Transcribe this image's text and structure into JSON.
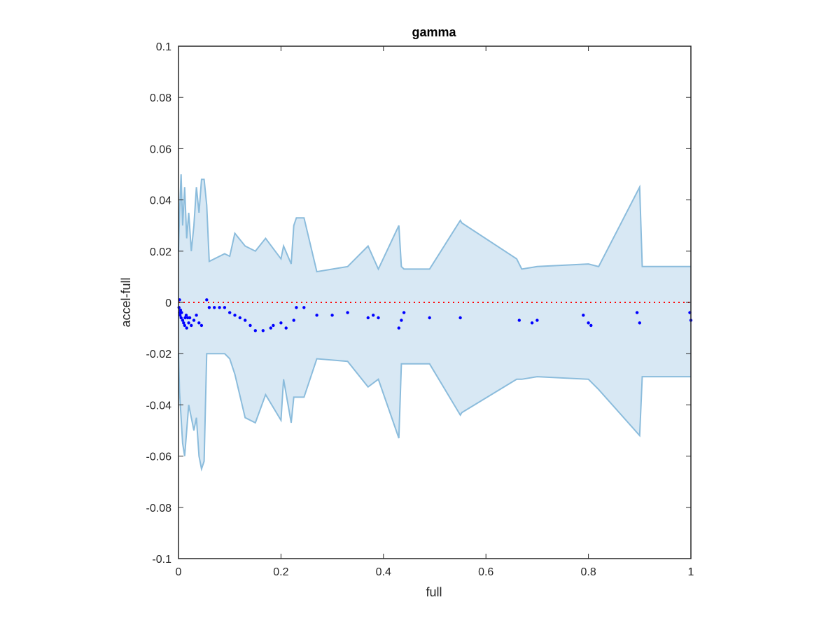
{
  "chart_data": {
    "type": "scatter",
    "title": "gamma",
    "xlabel": "full",
    "ylabel": "accel-full",
    "xlim": [
      0,
      1
    ],
    "ylim": [
      -0.1,
      0.1
    ],
    "x_ticks": [
      0,
      0.2,
      0.4,
      0.6,
      0.8,
      1
    ],
    "x_tick_labels": [
      "0",
      "0.2",
      "0.4",
      "0.6",
      "0.8",
      "1"
    ],
    "y_ticks": [
      0.1,
      0.08,
      0.06,
      0.04,
      0.02,
      0,
      -0.02,
      -0.04,
      -0.06,
      -0.08,
      -0.1
    ],
    "y_tick_labels": [
      "0.1",
      "0.08",
      "0.06",
      "0.04",
      "0.02",
      "0",
      "-0.02",
      "-0.04",
      "-0.06",
      "-0.08",
      "-0.1"
    ],
    "grid": false,
    "legend": "none",
    "band": {
      "x": [
        0,
        0.002,
        0.005,
        0.008,
        0.012,
        0.016,
        0.02,
        0.025,
        0.03,
        0.035,
        0.04,
        0.045,
        0.05,
        0.055,
        0.06,
        0.09,
        0.1,
        0.11,
        0.13,
        0.15,
        0.17,
        0.2,
        0.205,
        0.22,
        0.225,
        0.23,
        0.245,
        0.27,
        0.33,
        0.37,
        0.39,
        0.43,
        0.435,
        0.44,
        0.49,
        0.55,
        0.553,
        0.66,
        0.67,
        0.7,
        0.8,
        0.82,
        0.9,
        0.905,
        0.998,
        1
      ],
      "upper": [
        0.02,
        0.035,
        0.05,
        0.03,
        0.045,
        0.025,
        0.035,
        0.02,
        0.03,
        0.045,
        0.035,
        0.048,
        0.048,
        0.038,
        0.016,
        0.019,
        0.018,
        0.027,
        0.022,
        0.02,
        0.025,
        0.017,
        0.022,
        0.015,
        0.03,
        0.033,
        0.033,
        0.012,
        0.014,
        0.022,
        0.013,
        0.03,
        0.014,
        0.013,
        0.013,
        0.032,
        0.031,
        0.017,
        0.013,
        0.014,
        0.015,
        0.014,
        0.045,
        0.014,
        0.014,
        0.014
      ],
      "lower": [
        -0.02,
        -0.035,
        -0.045,
        -0.055,
        -0.06,
        -0.05,
        -0.04,
        -0.045,
        -0.05,
        -0.045,
        -0.06,
        -0.065,
        -0.062,
        -0.02,
        -0.02,
        -0.02,
        -0.022,
        -0.028,
        -0.045,
        -0.047,
        -0.036,
        -0.046,
        -0.03,
        -0.047,
        -0.037,
        -0.037,
        -0.037,
        -0.022,
        -0.023,
        -0.033,
        -0.03,
        -0.053,
        -0.024,
        -0.024,
        -0.024,
        -0.044,
        -0.043,
        -0.03,
        -0.03,
        -0.029,
        -0.03,
        -0.034,
        -0.052,
        -0.029,
        -0.029,
        -0.029
      ]
    },
    "reference_line": {
      "y": 0,
      "style": "dotted",
      "color": "#ff0000"
    },
    "series": [
      {
        "x": [
          0.001,
          0.002,
          0.002,
          0.003,
          0.004,
          0.005,
          0.006,
          0.008,
          0.01,
          0.012,
          0.013,
          0.015,
          0.016,
          0.018,
          0.02,
          0.022,
          0.025,
          0.03,
          0.035,
          0.04,
          0.045,
          0.055,
          0.06,
          0.07,
          0.08,
          0.09,
          0.1,
          0.11,
          0.12,
          0.13,
          0.14,
          0.15,
          0.165,
          0.18,
          0.185,
          0.2,
          0.21,
          0.225,
          0.23,
          0.245,
          0.27,
          0.3,
          0.33,
          0.37,
          0.38,
          0.39,
          0.43,
          0.435,
          0.44,
          0.49,
          0.55,
          0.665,
          0.69,
          0.7,
          0.79,
          0.8,
          0.805,
          0.895,
          0.9,
          0.998,
          1.0
        ],
        "y": [
          -0.002,
          -0.004,
          0.001,
          -0.005,
          -0.003,
          -0.006,
          -0.004,
          -0.007,
          -0.008,
          -0.009,
          -0.006,
          -0.005,
          -0.01,
          -0.006,
          -0.008,
          -0.006,
          -0.009,
          -0.007,
          -0.005,
          -0.008,
          -0.009,
          0.001,
          -0.002,
          -0.002,
          -0.002,
          -0.002,
          -0.004,
          -0.005,
          -0.006,
          -0.007,
          -0.009,
          -0.011,
          -0.011,
          -0.01,
          -0.009,
          -0.008,
          -0.01,
          -0.007,
          -0.002,
          -0.002,
          -0.005,
          -0.005,
          -0.004,
          -0.006,
          -0.005,
          -0.006,
          -0.01,
          -0.007,
          -0.004,
          -0.006,
          -0.006,
          -0.007,
          -0.008,
          -0.007,
          -0.005,
          -0.008,
          -0.009,
          -0.004,
          -0.008,
          -0.004,
          -0.007
        ],
        "color": "#0000ff"
      }
    ],
    "colors": {
      "band_fill": "#d8e8f4",
      "band_edge": "#8bbcdc",
      "axes": "#262626"
    }
  }
}
